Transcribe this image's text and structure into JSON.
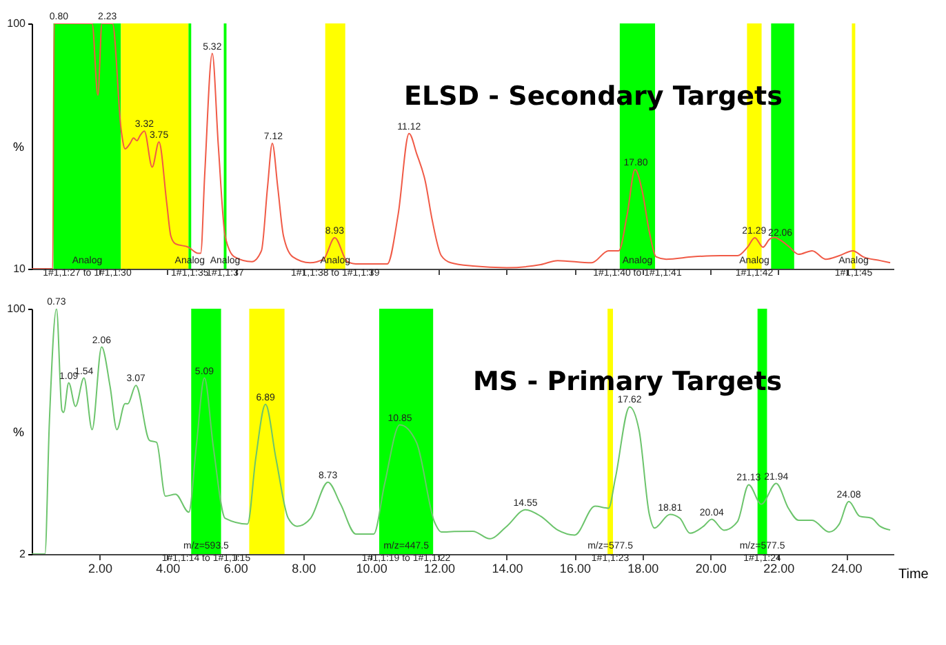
{
  "chart_data": [
    {
      "type": "line",
      "title": "ELSD - Secondary Targets",
      "ylabel": "%",
      "xlim": [
        0,
        25.4
      ],
      "ylim": [
        10,
        100
      ],
      "yticks": [
        10,
        100
      ],
      "tick_labels": "y",
      "grid": false,
      "xticks": [
        {
          "value": 2,
          "label": null
        },
        {
          "value": 4,
          "label": null
        },
        {
          "value": 6,
          "label": null
        },
        {
          "value": 8,
          "label": null
        },
        {
          "value": 10,
          "label": null
        },
        {
          "value": 12,
          "label": null
        },
        {
          "value": 14,
          "label": null
        },
        {
          "value": 16,
          "label": null
        },
        {
          "value": 18,
          "label": null
        },
        {
          "value": 20,
          "label": null
        },
        {
          "value": 22,
          "label": null
        },
        {
          "value": 24,
          "label": null
        }
      ],
      "series": [
        {
          "color": "#f05a46",
          "x": [
            0,
            0.62,
            0.66,
            1.0,
            1.5,
            1.78,
            1.95,
            2.07,
            2.38,
            2.64,
            2.75,
            2.9,
            3.0,
            3.1,
            3.2,
            3.32,
            3.55,
            3.75,
            3.98,
            4.1,
            4.23,
            4.62,
            4.9,
            4.98,
            5.1,
            5.32,
            5.5,
            5.7,
            5.97,
            6.49,
            6.77,
            6.95,
            7.09,
            7.25,
            7.42,
            7.69,
            8.2,
            8.6,
            8.93,
            9.3,
            9.55,
            10.48,
            10.8,
            11.12,
            11.35,
            11.6,
            11.8,
            12.07,
            12.35,
            13,
            14,
            15,
            15.5,
            16.5,
            17,
            17.3,
            17.55,
            17.78,
            18.0,
            18.2,
            18.4,
            18.7,
            19.5,
            20.3,
            20.8,
            21.1,
            21.31,
            21.55,
            21.75,
            21.9,
            22.06,
            22.3,
            22.6,
            23,
            23.4,
            23.8,
            24.2,
            24.5,
            25,
            25.3
          ],
          "values": [
            10,
            10,
            100,
            100,
            100,
            100,
            73.7,
            100,
            100,
            60.5,
            54,
            56,
            58,
            57,
            59,
            60.5,
            47.3,
            56.5,
            34,
            22,
            19.2,
            17.9,
            15.7,
            15.7,
            45,
            89,
            55,
            22,
            14.4,
            12.6,
            16.6,
            40,
            56,
            40,
            22,
            14.4,
            12.2,
            13.5,
            21.4,
            12.6,
            11.8,
            11.8,
            30,
            59.6,
            52,
            42,
            28,
            14.8,
            12.2,
            11,
            10.4,
            11.5,
            13,
            12.2,
            16.6,
            16.6,
            30,
            46.4,
            38,
            23.6,
            14.4,
            13.5,
            14.4,
            14.8,
            14.8,
            18,
            21.4,
            17.9,
            20.9,
            21.5,
            20.5,
            18.3,
            15.3,
            16.6,
            13.5,
            14.8,
            16.6,
            14.4,
            13,
            12.2
          ]
        }
      ],
      "bands": [
        {
          "axis": "x",
          "from": 0.64,
          "to": 2.63,
          "label": "Analog\n1#1,1:27 to 1#1,1:30",
          "color": "#00ff00"
        },
        {
          "axis": "x",
          "from": 2.63,
          "to": 4.62,
          "label": null,
          "color": "#ffff00"
        },
        {
          "axis": "x",
          "from": 4.62,
          "to": 4.7,
          "label": "Analog\n1#1,1:35",
          "color": "#00ff00"
        },
        {
          "axis": "x",
          "from": 5.66,
          "to": 5.74,
          "label": "Analog\n1#1,1:37",
          "color": "#00ff00"
        },
        {
          "axis": "x",
          "from": 8.65,
          "to": 9.24,
          "label": "Analog\n1#1,1:38 to 1#1,1:39",
          "color": "#ffff00"
        },
        {
          "axis": "x",
          "from": 17.33,
          "to": 18.37,
          "label": "Analog\n1#1,1:40 to 1#1,1:41",
          "color": "#00ff00"
        },
        {
          "axis": "x",
          "from": 21.08,
          "to": 21.51,
          "label": "Analog\n1#1,1:42",
          "color": "#ffff00"
        },
        {
          "axis": "x",
          "from": 21.79,
          "to": 22.47,
          "label": null,
          "color": "#00ff00"
        },
        {
          "axis": "x",
          "from": 24.17,
          "to": 24.27,
          "label": "Analog\n1#1,1:45",
          "color": "#ffff00"
        }
      ],
      "annotations": [
        {
          "text": "0.80",
          "x": 0.8,
          "y": 100
        },
        {
          "text": "2.23",
          "x": 2.23,
          "y": 100
        },
        {
          "text": "3.32",
          "x": 3.32,
          "y": 60.5
        },
        {
          "text": "3.75",
          "x": 3.75,
          "y": 56.5
        },
        {
          "text": "5.32",
          "x": 5.32,
          "y": 89
        },
        {
          "text": "7.12",
          "x": 7.12,
          "y": 56
        },
        {
          "text": "8.93",
          "x": 8.93,
          "y": 21.4
        },
        {
          "text": "11.12",
          "x": 11.12,
          "y": 59.6
        },
        {
          "text": "17.80",
          "x": 17.8,
          "y": 46.4
        },
        {
          "text": "21.29",
          "x": 21.29,
          "y": 21.4
        },
        {
          "text": "22.06",
          "x": 22.06,
          "y": 20.5
        }
      ]
    },
    {
      "type": "line",
      "title": "MS - Primary Targets",
      "xlabel": "Time",
      "ylabel": "%",
      "xlim": [
        0,
        25.4
      ],
      "ylim": [
        2,
        100
      ],
      "yticks": [
        2,
        100
      ],
      "grid": false,
      "xticks": [
        {
          "value": 2,
          "label": "2.00"
        },
        {
          "value": 4,
          "label": "4.00"
        },
        {
          "value": 6,
          "label": "6.00"
        },
        {
          "value": 8,
          "label": "8.00"
        },
        {
          "value": 10,
          "label": "10.00"
        },
        {
          "value": 12,
          "label": "12.00"
        },
        {
          "value": 14,
          "label": "14.00"
        },
        {
          "value": 16,
          "label": "16.00"
        },
        {
          "value": 18,
          "label": "18.00"
        },
        {
          "value": 20,
          "label": "20.00"
        },
        {
          "value": 22,
          "label": "22.00"
        },
        {
          "value": 24,
          "label": "24.00"
        }
      ],
      "series": [
        {
          "color": "#6cc46c",
          "x": [
            0,
            0.39,
            0.52,
            0.73,
            0.89,
            0.94,
            1.09,
            1.29,
            1.54,
            1.78,
            2.06,
            2.31,
            2.51,
            2.75,
            2.83,
            3.07,
            3.47,
            3.68,
            3.94,
            4.24,
            4.63,
            4.85,
            5.09,
            5.35,
            5.7,
            6.36,
            6.6,
            6.89,
            7.2,
            7.56,
            7.82,
            8.22,
            8.73,
            9.1,
            9.55,
            10.08,
            10.4,
            10.85,
            11.34,
            11.87,
            12.07,
            12.45,
            13,
            13.5,
            14,
            14.55,
            15,
            15.5,
            16,
            16.6,
            17,
            17.2,
            17.62,
            17.9,
            18.2,
            18.35,
            18.81,
            19.1,
            19.4,
            19.8,
            20.04,
            20.4,
            20.8,
            21.13,
            21.5,
            21.94,
            22.3,
            22.6,
            23,
            23.5,
            23.8,
            24.08,
            24.4,
            24.75,
            25,
            25.3
          ],
          "values": [
            2,
            2,
            54.6,
            100,
            59.4,
            58.6,
            70.4,
            61,
            72.3,
            51.7,
            84.7,
            68.9,
            51.7,
            62.1,
            62,
            69.4,
            47.4,
            46.6,
            25.1,
            25.9,
            18.7,
            45,
            72.3,
            45,
            16.3,
            14,
            40,
            61.8,
            40,
            16.3,
            13.1,
            16.3,
            30.7,
            22,
            10,
            10,
            30,
            53.6,
            46.6,
            14.8,
            10.8,
            11,
            11.1,
            8.1,
            13.1,
            19.7,
            17.1,
            11.6,
            9.6,
            21.1,
            20.3,
            32.3,
            60.8,
            51.4,
            17.9,
            12.4,
            17.8,
            16.3,
            10.3,
            13.1,
            15.9,
            11.5,
            15,
            29.7,
            21.9,
            30.2,
            20.3,
            15.5,
            15.5,
            10.8,
            14,
            23,
            17.1,
            16.3,
            13.1,
            11.6
          ]
        }
      ],
      "bands": [
        {
          "axis": "x",
          "from": 4.7,
          "to": 5.58,
          "label": "m/z=593.5\n1#1,1:14 to 1#1,1:15",
          "color": "#00ff00"
        },
        {
          "axis": "x",
          "from": 6.41,
          "to": 7.45,
          "label": null,
          "color": "#ffff00"
        },
        {
          "axis": "x",
          "from": 10.24,
          "to": 11.83,
          "label": "m/z=447.5\n1#1,1:19 to 1#1,1:22",
          "color": "#00ff00"
        },
        {
          "axis": "x",
          "from": 16.97,
          "to": 17.13,
          "label": "m/z=577.5\n1#1,1:23",
          "color": "#ffff00"
        },
        {
          "axis": "x",
          "from": 21.39,
          "to": 21.67,
          "label": "m/z=577.5\n1#1,1:24",
          "color": "#00ff00"
        }
      ],
      "annotations": [
        {
          "text": "0.73",
          "x": 0.73,
          "y": 100
        },
        {
          "text": "1.09",
          "x": 1.09,
          "y": 70.4
        },
        {
          "text": "1.54",
          "x": 1.54,
          "y": 72.3
        },
        {
          "text": "2.06",
          "x": 2.06,
          "y": 84.7
        },
        {
          "text": "3.07",
          "x": 3.07,
          "y": 69.4
        },
        {
          "text": "5.09",
          "x": 5.09,
          "y": 72.3
        },
        {
          "text": "6.89",
          "x": 6.89,
          "y": 61.8
        },
        {
          "text": "8.73",
          "x": 8.73,
          "y": 30.7
        },
        {
          "text": "10.85",
          "x": 10.85,
          "y": 53.6
        },
        {
          "text": "14.55",
          "x": 14.55,
          "y": 19.7
        },
        {
          "text": "17.62",
          "x": 17.62,
          "y": 60.8
        },
        {
          "text": "18.81",
          "x": 18.81,
          "y": 17.8
        },
        {
          "text": "20.04",
          "x": 20.04,
          "y": 15.9
        },
        {
          "text": "21.13",
          "x": 21.13,
          "y": 29.7
        },
        {
          "text": "21.94",
          "x": 21.94,
          "y": 30.2
        },
        {
          "text": "24.08",
          "x": 24.08,
          "y": 23
        }
      ]
    }
  ]
}
